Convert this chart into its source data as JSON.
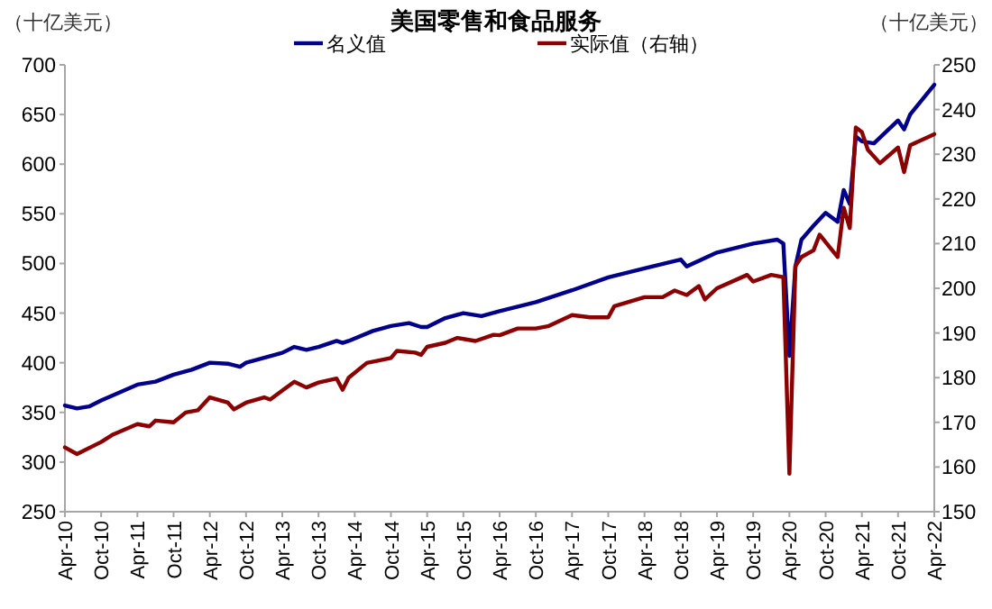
{
  "chart_data": {
    "type": "line",
    "title": "美国零售和食品服务",
    "ylabel": "（十亿美元）",
    "y2label": "（十亿美元）",
    "xlim": [
      "2010-04",
      "2022-04"
    ],
    "xticks": [
      {
        "value": "2010-04",
        "label": "Apr-10"
      },
      {
        "value": "2010-10",
        "label": "Oct-10"
      },
      {
        "value": "2011-04",
        "label": "Apr-11"
      },
      {
        "value": "2011-10",
        "label": "Oct-11"
      },
      {
        "value": "2012-04",
        "label": "Apr-12"
      },
      {
        "value": "2012-10",
        "label": "Oct-12"
      },
      {
        "value": "2013-04",
        "label": "Apr-13"
      },
      {
        "value": "2013-10",
        "label": "Oct-13"
      },
      {
        "value": "2014-04",
        "label": "Apr-14"
      },
      {
        "value": "2014-10",
        "label": "Oct-14"
      },
      {
        "value": "2015-04",
        "label": "Apr-15"
      },
      {
        "value": "2015-10",
        "label": "Oct-15"
      },
      {
        "value": "2016-04",
        "label": "Apr-16"
      },
      {
        "value": "2016-10",
        "label": "Oct-16"
      },
      {
        "value": "2017-04",
        "label": "Apr-17"
      },
      {
        "value": "2017-10",
        "label": "Oct-17"
      },
      {
        "value": "2018-04",
        "label": "Apr-18"
      },
      {
        "value": "2018-10",
        "label": "Oct-18"
      },
      {
        "value": "2019-04",
        "label": "Apr-19"
      },
      {
        "value": "2019-10",
        "label": "Oct-19"
      },
      {
        "value": "2020-04",
        "label": "Apr-20"
      },
      {
        "value": "2020-10",
        "label": "Oct-20"
      },
      {
        "value": "2021-04",
        "label": "Apr-21"
      },
      {
        "value": "2021-10",
        "label": "Oct-21"
      },
      {
        "value": "2022-04",
        "label": "Apr-22"
      }
    ],
    "ylim": [
      250,
      700
    ],
    "yticks": [
      250,
      300,
      350,
      400,
      450,
      500,
      550,
      600,
      650,
      700
    ],
    "y2lim": [
      150,
      250
    ],
    "y2ticks": [
      150,
      160,
      170,
      180,
      190,
      200,
      210,
      220,
      230,
      240,
      250
    ],
    "legend": "top",
    "grid": false,
    "series": [
      {
        "name": "名义值",
        "color": "#00008b",
        "x": [
          "2010-04",
          "2010-06",
          "2010-08",
          "2010-10",
          "2011-01",
          "2011-04",
          "2011-07",
          "2011-10",
          "2012-01",
          "2012-04",
          "2012-07",
          "2012-09",
          "2012-10",
          "2013-01",
          "2013-04",
          "2013-06",
          "2013-08",
          "2013-10",
          "2014-01",
          "2014-02",
          "2014-03",
          "2014-07",
          "2014-10",
          "2015-01",
          "2015-03",
          "2015-04",
          "2015-07",
          "2015-10",
          "2016-01",
          "2016-04",
          "2016-10",
          "2017-04",
          "2017-10",
          "2018-04",
          "2018-10",
          "2018-11",
          "2019-04",
          "2019-10",
          "2020-02",
          "2020-03",
          "2020-04",
          "2020-05",
          "2020-06",
          "2020-08",
          "2020-10",
          "2020-12",
          "2021-01",
          "2021-02",
          "2021-03",
          "2021-04",
          "2021-06",
          "2021-10",
          "2021-11",
          "2021-12",
          "2022-04"
        ],
        "values": [
          357,
          354,
          356,
          362,
          370,
          378,
          381,
          388,
          393,
          400,
          399,
          396,
          400,
          405,
          410,
          416,
          413,
          416,
          422,
          420,
          422,
          432,
          437,
          440,
          436,
          436,
          445,
          450,
          447,
          452,
          461,
          473,
          486,
          495,
          504,
          497,
          511,
          520,
          524,
          520,
          407,
          497,
          524,
          538,
          551,
          542,
          574,
          560,
          628,
          623,
          621,
          644,
          635,
          650,
          680
        ]
      },
      {
        "name": "实际值（右轴）",
        "color": "#8b0000",
        "axis": "y2",
        "x": [
          "2010-04",
          "2010-06",
          "2010-10",
          "2010-12",
          "2011-04",
          "2011-06",
          "2011-07",
          "2011-10",
          "2011-12",
          "2012-02",
          "2012-04",
          "2012-07",
          "2012-08",
          "2012-10",
          "2013-01",
          "2013-02",
          "2013-04",
          "2013-06",
          "2013-08",
          "2013-10",
          "2014-01",
          "2014-02",
          "2014-03",
          "2014-06",
          "2014-10",
          "2014-11",
          "2015-02",
          "2015-03",
          "2015-04",
          "2015-07",
          "2015-09",
          "2015-12",
          "2016-03",
          "2016-04",
          "2016-07",
          "2016-10",
          "2016-12",
          "2017-04",
          "2017-07",
          "2017-10",
          "2017-11",
          "2018-04",
          "2018-07",
          "2018-09",
          "2018-11",
          "2019-01",
          "2019-02",
          "2019-04",
          "2019-09",
          "2019-10",
          "2020-01",
          "2020-03",
          "2020-04",
          "2020-05",
          "2020-06",
          "2020-08",
          "2020-09",
          "2020-12",
          "2021-01",
          "2021-02",
          "2021-03",
          "2021-04",
          "2021-05",
          "2021-07",
          "2021-10",
          "2021-11",
          "2021-12",
          "2022-04"
        ],
        "values": [
          164.4,
          162.9,
          165.6,
          167.3,
          169.6,
          169.1,
          170.4,
          170,
          172.2,
          172.7,
          175.6,
          174.4,
          172.9,
          174.4,
          175.6,
          175.1,
          177.1,
          179.1,
          177.8,
          178.9,
          179.8,
          177.3,
          180,
          183.3,
          184.4,
          186,
          185.6,
          185.1,
          186.9,
          187.8,
          188.9,
          188.2,
          189.6,
          189.5,
          191,
          191,
          191.5,
          194,
          193.5,
          193.5,
          196,
          198,
          198,
          199.5,
          198.5,
          200.5,
          197.5,
          200,
          203,
          201.5,
          203,
          202.5,
          158.5,
          205,
          207,
          208.5,
          212,
          207,
          218,
          213.5,
          236,
          235,
          231,
          228,
          231.5,
          226,
          232,
          234.5
        ]
      }
    ]
  }
}
